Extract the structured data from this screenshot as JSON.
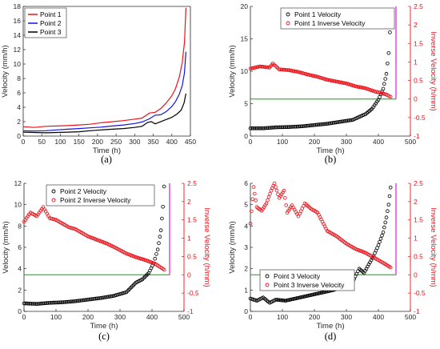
{
  "colors": {
    "red": "#e8141b",
    "blue": "#1414e0",
    "black": "#000000",
    "green": "#00c800",
    "magenta": "#e000e0",
    "inverse_axis": "#e8141b"
  },
  "chart_data": [
    {
      "panel": "(a)",
      "type": "line",
      "xlabel": "Time (h)",
      "ylabel": "Velocity (mm/h)",
      "xlim": [
        0,
        450
      ],
      "ylim": [
        0,
        18
      ],
      "xticks": [
        0,
        50,
        100,
        150,
        200,
        250,
        300,
        350,
        400,
        450
      ],
      "yticks": [
        0,
        2,
        4,
        6,
        8,
        10,
        12,
        14,
        16,
        18
      ],
      "legend": "top-left",
      "series": [
        {
          "name": "Point 1",
          "color": "red",
          "x": [
            0,
            30,
            60,
            90,
            120,
            150,
            180,
            210,
            240,
            270,
            300,
            320,
            340,
            355,
            370,
            385,
            400,
            410,
            420,
            428,
            434,
            438
          ],
          "y": [
            1.3,
            1.2,
            1.35,
            1.4,
            1.45,
            1.55,
            1.65,
            1.85,
            2.0,
            2.15,
            2.35,
            2.5,
            3.2,
            3.3,
            3.8,
            4.6,
            5.6,
            6.6,
            8.2,
            10.2,
            13.0,
            17.8
          ]
        },
        {
          "name": "Point 2",
          "color": "blue",
          "x": [
            0,
            30,
            60,
            90,
            120,
            150,
            180,
            210,
            240,
            270,
            300,
            320,
            340,
            355,
            370,
            385,
            400,
            410,
            420,
            428,
            434,
            438
          ],
          "y": [
            0.75,
            0.7,
            0.75,
            0.85,
            0.95,
            1.05,
            1.15,
            1.25,
            1.4,
            1.55,
            1.75,
            1.95,
            2.4,
            2.9,
            2.95,
            3.4,
            4.1,
            4.8,
            5.8,
            7.0,
            8.8,
            11.7
          ]
        },
        {
          "name": "Point 3",
          "color": "black",
          "x": [
            0,
            30,
            60,
            90,
            120,
            150,
            180,
            210,
            240,
            270,
            300,
            320,
            335,
            345,
            355,
            365,
            380,
            400,
            415,
            425,
            433,
            438
          ],
          "y": [
            0.55,
            0.5,
            0.45,
            0.5,
            0.55,
            0.6,
            0.75,
            0.85,
            0.95,
            1.05,
            1.2,
            1.35,
            1.9,
            2.0,
            1.7,
            1.9,
            2.2,
            2.6,
            3.1,
            3.6,
            4.6,
            5.9
          ]
        }
      ]
    },
    {
      "panel": "(b)",
      "type": "scatter",
      "xlabel": "Time (h)",
      "ylabel": "Velocity (mm/h)",
      "ylabel_right": "Inverse Velocity (h/mm)",
      "xlim": [
        0,
        500
      ],
      "ylim": [
        0,
        20
      ],
      "ylim_right": [
        -1,
        2.5
      ],
      "xticks": [
        0,
        100,
        200,
        300,
        400,
        500
      ],
      "yticks": [
        0,
        5,
        10,
        15,
        20
      ],
      "yticks_right": [
        -1,
        -0.5,
        0,
        0.5,
        1,
        1.5,
        2,
        2.5
      ],
      "legend": "top-center",
      "x_intercept": 455,
      "series": [
        {
          "name": "Point 1 Velocity",
          "color": "black",
          "x": [
            0,
            40,
            80,
            120,
            160,
            200,
            240,
            280,
            320,
            360,
            380,
            400,
            415,
            425,
            432,
            436,
            438
          ],
          "y": [
            1.2,
            1.2,
            1.35,
            1.4,
            1.5,
            1.7,
            1.9,
            2.2,
            2.5,
            3.4,
            4.2,
            5.6,
            7.3,
            9.6,
            12.8,
            16.0,
            17.8
          ]
        },
        {
          "name": "Point 1 Inverse Velocity",
          "color": "red",
          "x": [
            0,
            30,
            60,
            70,
            90,
            120,
            150,
            180,
            210,
            240,
            270,
            300,
            330,
            360,
            390,
            410,
            425,
            438
          ],
          "y": [
            0.82,
            0.88,
            0.85,
            0.96,
            0.8,
            0.78,
            0.73,
            0.66,
            0.6,
            0.52,
            0.47,
            0.42,
            0.34,
            0.29,
            0.2,
            0.16,
            0.12,
            0.06
          ]
        }
      ]
    },
    {
      "panel": "(c)",
      "type": "scatter",
      "xlabel": "Time (h)",
      "ylabel": "Velocity (mm/h)",
      "ylabel_right": "Inverse Velocity (h/mm)",
      "xlim": [
        0,
        500
      ],
      "ylim": [
        0,
        12
      ],
      "ylim_right": [
        -1,
        2.5
      ],
      "xticks": [
        0,
        100,
        200,
        300,
        400,
        500
      ],
      "yticks": [
        0,
        2,
        4,
        6,
        8,
        10,
        12
      ],
      "yticks_right": [
        -1,
        -0.5,
        0,
        0.5,
        1,
        1.5,
        2,
        2.5
      ],
      "legend": "top-center",
      "x_intercept": 455,
      "series": [
        {
          "name": "Point 2 Velocity",
          "color": "black",
          "x": [
            0,
            40,
            80,
            120,
            160,
            200,
            240,
            280,
            320,
            350,
            370,
            390,
            405,
            418,
            428,
            434,
            438
          ],
          "y": [
            0.75,
            0.7,
            0.8,
            0.85,
            0.95,
            1.1,
            1.25,
            1.45,
            1.8,
            2.7,
            3.0,
            3.6,
            4.5,
            5.8,
            7.6,
            9.8,
            11.7
          ]
        },
        {
          "name": "Point 2 Inverse Velocity",
          "color": "red",
          "x": [
            0,
            20,
            40,
            60,
            80,
            100,
            120,
            140,
            160,
            180,
            200,
            230,
            260,
            290,
            320,
            350,
            380,
            410,
            438
          ],
          "y": [
            1.45,
            1.7,
            1.6,
            1.85,
            1.55,
            1.5,
            1.4,
            1.3,
            1.25,
            1.15,
            1.05,
            0.95,
            0.85,
            0.72,
            0.58,
            0.48,
            0.4,
            0.3,
            0.14
          ]
        }
      ]
    },
    {
      "panel": "(d)",
      "type": "scatter",
      "xlabel": "Time (h)",
      "ylabel": "Velocity (mm/h)",
      "ylabel_right": "Inverse Velocity (h/mm)",
      "xlim": [
        0,
        500
      ],
      "ylim": [
        0,
        6
      ],
      "ylim_right": [
        -1,
        2.5
      ],
      "xticks": [
        0,
        100,
        200,
        300,
        400,
        500
      ],
      "yticks": [
        0,
        1,
        2,
        3,
        4,
        5,
        6
      ],
      "yticks_right": [
        -1,
        -0.5,
        0,
        0.5,
        1,
        1.5,
        2,
        2.5
      ],
      "legend": "bottom-center",
      "x_intercept": 455,
      "series": [
        {
          "name": "Point 3 Velocity",
          "color": "black",
          "x": [
            0,
            20,
            40,
            60,
            80,
            110,
            140,
            170,
            200,
            230,
            260,
            290,
            320,
            340,
            355,
            370,
            385,
            400,
            415,
            425,
            432,
            438
          ],
          "y": [
            0.6,
            0.5,
            0.65,
            0.4,
            0.55,
            0.5,
            0.6,
            0.7,
            0.8,
            0.9,
            1.0,
            1.2,
            1.4,
            2.0,
            1.8,
            2.2,
            2.6,
            3.1,
            3.7,
            4.4,
            5.0,
            5.8
          ]
        },
        {
          "name": "Point 3 Inverse Velocity",
          "color": "red",
          "x": [
            0,
            10,
            20,
            35,
            50,
            65,
            75,
            90,
            105,
            115,
            130,
            150,
            170,
            190,
            210,
            240,
            270,
            300,
            330,
            360,
            390,
            420,
            438
          ],
          "y": [
            1.4,
            2.4,
            1.85,
            1.75,
            1.95,
            2.3,
            2.5,
            2.1,
            2.3,
            1.7,
            1.9,
            1.6,
            1.95,
            1.8,
            1.7,
            1.2,
            1.05,
            0.85,
            0.7,
            0.6,
            0.45,
            0.3,
            0.2
          ]
        }
      ]
    }
  ]
}
